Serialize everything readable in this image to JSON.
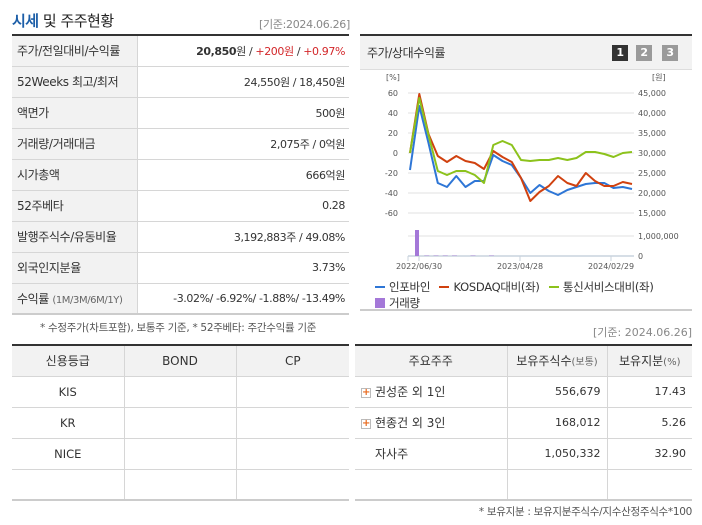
{
  "header": {
    "title_highlight": "시세",
    "title_rest": " 및 주주현황",
    "base_date": "[기준:2024.06.26]"
  },
  "quote_table": {
    "rows": [
      {
        "label": "주가/전일대비/수익률",
        "price": "20,850",
        "price_unit": "원",
        "sep1": " / ",
        "change": "+200원",
        "sep2": " / ",
        "change_pct": "+0.97%"
      },
      {
        "label": "52Weeks 최고/최저",
        "value": "24,550원 / 18,450원"
      },
      {
        "label": "액면가",
        "value": "500원"
      },
      {
        "label": "거래량/거래대금",
        "value": "2,075주 / 0억원"
      },
      {
        "label": "시가총액",
        "value": "666억원"
      },
      {
        "label": "52주베타",
        "value": "0.28"
      },
      {
        "label": "발행주식수/유동비율",
        "value": "3,192,883주 / 49.08%"
      },
      {
        "label": "외국인지분율",
        "value": "3.73%"
      },
      {
        "label": "수익률",
        "label_small": "(1M/3M/6M/1Y)",
        "value": "-3.02%/ -6.92%/ -1.88%/ -13.49%"
      }
    ],
    "note": "* 수정주가(차트포함), 보통주 기준, * 52주베타: 주간수익률 기준"
  },
  "chart_panel": {
    "title": "주가/상대수익률",
    "pages": [
      "1",
      "2",
      "3"
    ],
    "active_page": "1",
    "left_unit": "[%]",
    "right_unit": "[원]",
    "legend": [
      {
        "label": "인포바인",
        "color": "#2e76d6"
      },
      {
        "label": "KOSDAQ대비(좌)",
        "color": "#d0410f"
      },
      {
        "label": "통신서비스대비(좌)",
        "color": "#8cc21c"
      },
      {
        "label": "거래량",
        "color": "#a478d8"
      }
    ]
  },
  "chart_data": {
    "type": "line",
    "title": "주가/상대수익률",
    "x_tick_labels": [
      "2022/06/30",
      "2023/04/28",
      "2024/02/29"
    ],
    "y_left": {
      "label": "[%]",
      "ticks": [
        60,
        40,
        20,
        0,
        -20,
        -40,
        -60
      ],
      "range": [
        -60,
        60
      ]
    },
    "y_right": {
      "label": "[원]",
      "ticks": [
        "45,000",
        "40,000",
        "35,000",
        "30,000",
        "25,000",
        "20,000",
        "15,000"
      ],
      "range": [
        15000,
        45000
      ]
    },
    "volume_axis": {
      "ticks": [
        "1,000,000",
        "0"
      ]
    },
    "x_count": 25,
    "series": [
      {
        "name": "인포바인",
        "color": "#2e76d6",
        "values": [
          -17,
          47,
          10,
          -30,
          -34,
          -23,
          -34,
          -28,
          -28,
          -2,
          -8,
          -12,
          -25,
          -40,
          -32,
          -38,
          -42,
          -37,
          -34,
          -31,
          -30,
          -30,
          -35,
          -34,
          -36
        ]
      },
      {
        "name": "KOSDAQ대비(좌)",
        "color": "#d0410f",
        "values": [
          0,
          59,
          19,
          -3,
          -9,
          -3,
          -8,
          -10,
          -16,
          2,
          -4,
          -9,
          -25,
          -48,
          -39,
          -33,
          -23,
          -30,
          -33,
          -20,
          -28,
          -33,
          -33,
          -29,
          -31
        ]
      },
      {
        "name": "통신서비스대비(좌)",
        "color": "#8cc21c",
        "values": [
          0,
          55,
          18,
          -18,
          -22,
          -18,
          -18,
          -22,
          -30,
          8,
          12,
          8,
          -7,
          -8,
          -7,
          -7,
          -5,
          -7,
          -5,
          1,
          1,
          -1,
          -4,
          0,
          1
        ]
      },
      {
        "name": "거래량",
        "color": "#a478d8",
        "type": "bar",
        "values": [
          1300000,
          20000,
          20000,
          20000,
          20000,
          0,
          20000,
          0,
          20000,
          0,
          0,
          0,
          0,
          0,
          0,
          0,
          0,
          0,
          0,
          0,
          0,
          0,
          0,
          0,
          0
        ]
      }
    ],
    "grid": true,
    "legend_position": "bottom"
  },
  "credit_table": {
    "headers": [
      "신용등급",
      "BOND",
      "CP"
    ],
    "rows": [
      [
        "KIS",
        "",
        ""
      ],
      [
        "KR",
        "",
        ""
      ],
      [
        "NICE",
        "",
        ""
      ],
      [
        "",
        "",
        ""
      ]
    ]
  },
  "holder_table": {
    "base_date": "[기준: 2024.06.26]",
    "headers": {
      "name": "주요주주",
      "shares": "보유주식수",
      "shares_small": "(보통)",
      "ratio": "보유지분",
      "ratio_small": "(%)"
    },
    "rows": [
      {
        "name": "권성준 외 1인",
        "expandable": true,
        "shares": "556,679",
        "ratio": "17.43"
      },
      {
        "name": "현종건 외 3인",
        "expandable": true,
        "shares": "168,012",
        "ratio": "5.26"
      },
      {
        "name": "자사주",
        "expandable": false,
        "shares": "1,050,332",
        "ratio": "32.90"
      },
      {
        "name": "",
        "expandable": false,
        "shares": "",
        "ratio": ""
      }
    ],
    "note": "* 보유지분 : 보유지분주식수/지수산정주식수*100",
    "expand_icon": "+"
  }
}
